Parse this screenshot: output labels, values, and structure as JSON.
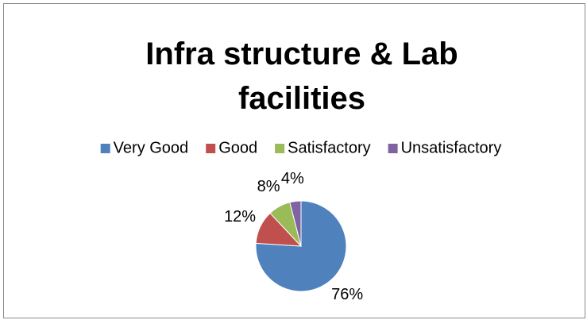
{
  "chart_data": {
    "type": "pie",
    "title": "Infra structure & Lab facilities",
    "categories": [
      "Very Good",
      "Good",
      "Satisfactory",
      "Unsatisfactory"
    ],
    "values": [
      76,
      12,
      8,
      4
    ],
    "value_labels": [
      "76%",
      "12%",
      "8%",
      "4%"
    ],
    "colors": [
      "#4f81bd",
      "#c0504d",
      "#9bbb59",
      "#8064a2"
    ],
    "legend": "top"
  }
}
